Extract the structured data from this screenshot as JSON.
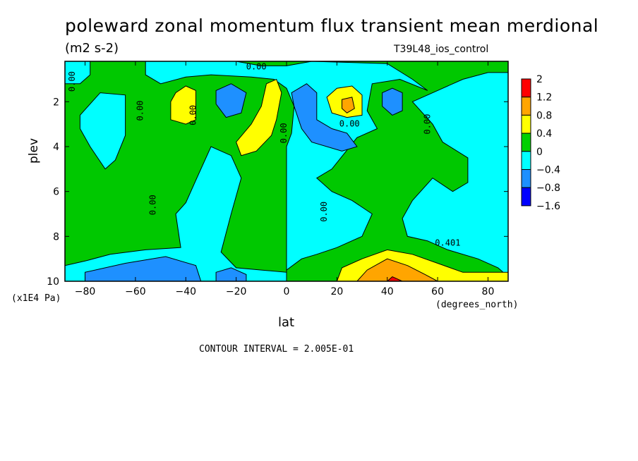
{
  "title": "poleward zonal momentum flux transient mean merdional",
  "units": "(m2 s-2)",
  "run_name": "T39L48_ios_control",
  "contour_interval": "CONTOUR INTERVAL = 2.005E-01",
  "chart_data": {
    "type": "heatmap",
    "xlabel": "lat",
    "ylabel": "plev",
    "x_units": "(degrees_north)",
    "y_units": "(x1E4 Pa)",
    "xlim": [
      -88,
      88
    ],
    "ylim": [
      10,
      0.2
    ],
    "x_ticks": [
      -80,
      -60,
      -40,
      -20,
      0,
      20,
      40,
      60,
      80
    ],
    "y_ticks": [
      2,
      4,
      6,
      8,
      10
    ],
    "colorbar": {
      "labels": [
        "2",
        "1.2",
        "0.8",
        "0.4",
        "0",
        "-0.4",
        "-0.8",
        "-1.6"
      ],
      "colors": [
        "#ff0000",
        "#ffa500",
        "#ffff00",
        "#00d000",
        "#00ffff",
        "#1e90ff",
        "#0000ff"
      ]
    },
    "contour_labels": [
      "0.00",
      "0.00",
      "0.00",
      "0.00",
      "0.00",
      "0.00",
      "0.00",
      "0.00",
      "0.00",
      "0.401"
    ],
    "regions": [
      {
        "value": -0.2,
        "color": "#00ffff",
        "points": [
          [
            -88,
            0.2
          ],
          [
            -78,
            0.2
          ],
          [
            -78,
            0.8
          ],
          [
            -82,
            1.2
          ],
          [
            -88,
            1.2
          ]
        ]
      },
      {
        "value": -0.2,
        "color": "#00ffff",
        "points": [
          [
            -82,
            2.6
          ],
          [
            -74,
            1.6
          ],
          [
            -64,
            1.7
          ],
          [
            -64,
            3.5
          ],
          [
            -68,
            4.6
          ],
          [
            -72,
            5.0
          ],
          [
            -78,
            4.0
          ],
          [
            -82,
            3.2
          ]
        ]
      },
      {
        "value": -0.2,
        "color": "#00ffff",
        "points": [
          [
            -56,
            0.2
          ],
          [
            -20,
            0.2
          ],
          [
            -10,
            0.4
          ],
          [
            0,
            0.4
          ],
          [
            10,
            0.2
          ],
          [
            40,
            0.3
          ],
          [
            50,
            1.0
          ],
          [
            56,
            1.5
          ],
          [
            45,
            1.0
          ],
          [
            34,
            1.2
          ],
          [
            32,
            2.4
          ],
          [
            36,
            3.2
          ],
          [
            28,
            3.6
          ],
          [
            18,
            5.0
          ],
          [
            12,
            5.4
          ],
          [
            18,
            6.0
          ],
          [
            26,
            6.4
          ],
          [
            34,
            7.0
          ],
          [
            30,
            8.0
          ],
          [
            20,
            8.5
          ],
          [
            12,
            8.8
          ],
          [
            6,
            9.0
          ],
          [
            0,
            9.5
          ],
          [
            0,
            10
          ],
          [
            0,
            4.0
          ],
          [
            2,
            3.4
          ],
          [
            3,
            2.2
          ],
          [
            0,
            1.4
          ],
          [
            -5,
            1.0
          ],
          [
            -14,
            0.9
          ],
          [
            -30,
            0.8
          ],
          [
            -40,
            0.9
          ],
          [
            -50,
            1.2
          ],
          [
            -56,
            0.8
          ]
        ]
      },
      {
        "value": -0.2,
        "color": "#00ffff",
        "points": [
          [
            50,
            2.0
          ],
          [
            60,
            1.5
          ],
          [
            70,
            1.0
          ],
          [
            80,
            0.7
          ],
          [
            88,
            0.7
          ],
          [
            88,
            9.8
          ],
          [
            84,
            9.4
          ],
          [
            76,
            9.0
          ],
          [
            64,
            8.6
          ],
          [
            56,
            8.2
          ],
          [
            48,
            8.0
          ],
          [
            46,
            7.2
          ],
          [
            50,
            6.4
          ],
          [
            58,
            5.4
          ],
          [
            66,
            6.0
          ],
          [
            72,
            5.6
          ],
          [
            72,
            4.5
          ],
          [
            62,
            3.8
          ],
          [
            58,
            3.0
          ]
        ]
      },
      {
        "value": -0.2,
        "color": "#00ffff",
        "points": [
          [
            -44,
            7.0
          ],
          [
            -42,
            8.5
          ],
          [
            -56,
            8.6
          ],
          [
            -70,
            8.8
          ],
          [
            -80,
            9.1
          ],
          [
            -88,
            9.3
          ],
          [
            -88,
            10
          ],
          [
            0,
            10
          ],
          [
            0,
            9.6
          ],
          [
            -10,
            9.5
          ],
          [
            -20,
            9.4
          ],
          [
            -26,
            8.7
          ],
          [
            -22,
            7.0
          ],
          [
            -18,
            5.4
          ],
          [
            -22,
            4.4
          ],
          [
            -30,
            4.0
          ],
          [
            -36,
            5.5
          ],
          [
            -40,
            6.5
          ]
        ]
      },
      {
        "value": 0.6,
        "color": "#ffff00",
        "points": [
          [
            -44,
            1.6
          ],
          [
            -40,
            1.3
          ],
          [
            -36,
            1.5
          ],
          [
            -36,
            2.8
          ],
          [
            -40,
            3.0
          ],
          [
            -46,
            2.8
          ],
          [
            -46,
            2.0
          ]
        ]
      },
      {
        "value": 0.6,
        "color": "#ffff00",
        "points": [
          [
            -8,
            1.2
          ],
          [
            -4,
            1.0
          ],
          [
            -2,
            1.6
          ],
          [
            -4,
            2.8
          ],
          [
            -6,
            3.5
          ],
          [
            -12,
            4.2
          ],
          [
            -18,
            4.4
          ],
          [
            -20,
            3.8
          ],
          [
            -14,
            3.0
          ],
          [
            -10,
            2.2
          ]
        ]
      },
      {
        "value": 0.6,
        "color": "#ffff00",
        "points": [
          [
            16,
            1.8
          ],
          [
            20,
            1.4
          ],
          [
            26,
            1.3
          ],
          [
            30,
            1.7
          ],
          [
            30,
            2.6
          ],
          [
            24,
            2.7
          ],
          [
            18,
            2.5
          ]
        ]
      },
      {
        "value": 1.0,
        "color": "#ffa500",
        "points": [
          [
            22,
            1.9
          ],
          [
            26,
            1.8
          ],
          [
            27,
            2.3
          ],
          [
            24,
            2.5
          ],
          [
            22,
            2.3
          ]
        ]
      },
      {
        "value": -0.6,
        "color": "#1e90ff",
        "points": [
          [
            -28,
            1.5
          ],
          [
            -22,
            1.2
          ],
          [
            -16,
            1.6
          ],
          [
            -18,
            2.5
          ],
          [
            -24,
            2.7
          ],
          [
            -28,
            2.1
          ]
        ]
      },
      {
        "value": -0.6,
        "color": "#1e90ff",
        "points": [
          [
            2,
            1.6
          ],
          [
            8,
            1.2
          ],
          [
            12,
            1.6
          ],
          [
            12,
            2.8
          ],
          [
            18,
            3.2
          ],
          [
            24,
            3.4
          ],
          [
            28,
            4.0
          ],
          [
            22,
            4.2
          ],
          [
            10,
            3.8
          ],
          [
            6,
            3.2
          ],
          [
            3,
            2.2
          ]
        ]
      },
      {
        "value": -0.6,
        "color": "#1e90ff",
        "points": [
          [
            38,
            1.6
          ],
          [
            42,
            1.4
          ],
          [
            46,
            1.6
          ],
          [
            46,
            2.4
          ],
          [
            42,
            2.6
          ],
          [
            38,
            2.2
          ]
        ]
      },
      {
        "value": -0.6,
        "color": "#1e90ff",
        "points": [
          [
            -80,
            9.6
          ],
          [
            -64,
            9.2
          ],
          [
            -48,
            8.9
          ],
          [
            -36,
            9.3
          ],
          [
            -34,
            10
          ],
          [
            -80,
            10
          ]
        ]
      },
      {
        "value": -0.6,
        "color": "#1e90ff",
        "points": [
          [
            -28,
            9.6
          ],
          [
            -22,
            9.4
          ],
          [
            -16,
            9.7
          ],
          [
            -16,
            10
          ],
          [
            -28,
            10
          ]
        ]
      },
      {
        "value": 0.6,
        "color": "#ffff00",
        "points": [
          [
            20,
            10
          ],
          [
            22,
            9.4
          ],
          [
            30,
            9.0
          ],
          [
            40,
            8.6
          ],
          [
            50,
            8.8
          ],
          [
            60,
            9.2
          ],
          [
            70,
            9.6
          ],
          [
            88,
            9.6
          ],
          [
            88,
            10
          ]
        ]
      },
      {
        "value": 1.0,
        "color": "#ffa500",
        "points": [
          [
            28,
            10
          ],
          [
            32,
            9.5
          ],
          [
            40,
            9.0
          ],
          [
            48,
            9.3
          ],
          [
            55,
            9.7
          ],
          [
            60,
            10
          ]
        ]
      },
      {
        "value": 1.6,
        "color": "#ff0000",
        "points": [
          [
            40,
            10
          ],
          [
            42,
            9.8
          ],
          [
            46,
            10
          ]
        ]
      }
    ]
  }
}
